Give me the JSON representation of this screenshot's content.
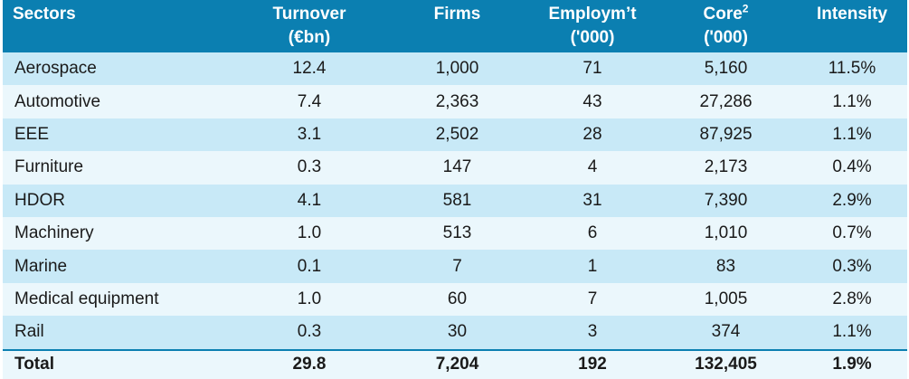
{
  "table": {
    "headers": [
      {
        "line1": "Sectors",
        "line2": ""
      },
      {
        "line1": "Turnover",
        "line2": "(€bn)"
      },
      {
        "line1": "Firms",
        "line2": ""
      },
      {
        "line1": "Employm’t",
        "line2": "('000)"
      },
      {
        "line1": "Core",
        "sup": "2",
        "line2": "('000)"
      },
      {
        "line1": "Intensity",
        "line2": ""
      }
    ],
    "rows": [
      {
        "sector": "Aerospace",
        "turnover": "12.4",
        "firms": "1,000",
        "employment": "71",
        "core": "5,160",
        "intensity": "11.5%"
      },
      {
        "sector": "Automotive",
        "turnover": "7.4",
        "firms": "2,363",
        "employment": "43",
        "core": "27,286",
        "intensity": "1.1%"
      },
      {
        "sector": "EEE",
        "turnover": "3.1",
        "firms": "2,502",
        "employment": "28",
        "core": "87,925",
        "intensity": "1.1%"
      },
      {
        "sector": "Furniture",
        "turnover": "0.3",
        "firms": "147",
        "employment": "4",
        "core": "2,173",
        "intensity": "0.4%"
      },
      {
        "sector": "HDOR",
        "turnover": "4.1",
        "firms": "581",
        "employment": "31",
        "core": "7,390",
        "intensity": "2.9%"
      },
      {
        "sector": "Machinery",
        "turnover": "1.0",
        "firms": "513",
        "employment": "6",
        "core": "1,010",
        "intensity": "0.7%"
      },
      {
        "sector": "Marine",
        "turnover": "0.1",
        "firms": "7",
        "employment": "1",
        "core": "83",
        "intensity": "0.3%"
      },
      {
        "sector": "Medical equipment",
        "turnover": "1.0",
        "firms": "60",
        "employment": "7",
        "core": "1,005",
        "intensity": "2.8%"
      },
      {
        "sector": "Rail",
        "turnover": "0.3",
        "firms": "30",
        "employment": "3",
        "core": "374",
        "intensity": "1.1%"
      }
    ],
    "total": {
      "sector": "Total",
      "turnover": "29.8",
      "firms": "7,204",
      "employment": "192",
      "core": "132,405",
      "intensity": "1.9%"
    }
  },
  "colors": {
    "header_bg": "#0b7fb1",
    "row_odd": "#c8e9f7",
    "row_even": "#ebf7fc"
  }
}
